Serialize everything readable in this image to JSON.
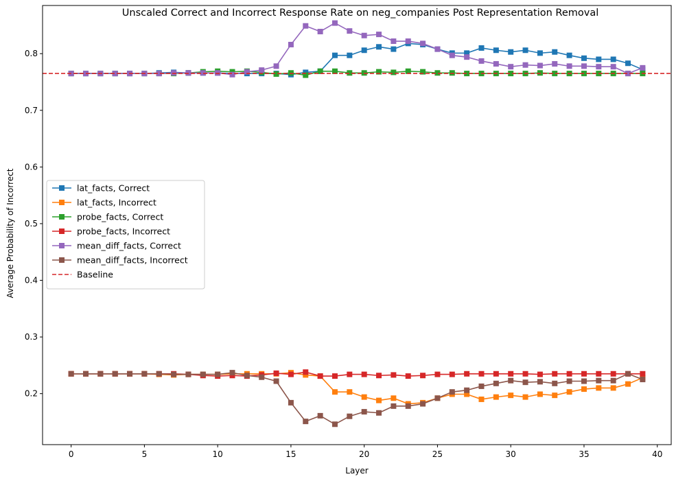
{
  "chart_data": {
    "type": "line",
    "title": "Unscaled Correct and Incorrect Response Rate on neg_companies Post Representation Removal",
    "xlabel": "Layer",
    "ylabel": "Average Probability of Incorrect",
    "xlim": [
      -1.95,
      40.95
    ],
    "ylim": [
      0.11,
      0.885
    ],
    "xticks": [
      0,
      5,
      10,
      15,
      20,
      25,
      30,
      35,
      40
    ],
    "yticks": [
      0.2,
      0.3,
      0.4,
      0.5,
      0.6,
      0.7,
      0.8
    ],
    "ytick_labels": [
      "0.2",
      "0.3",
      "0.4",
      "0.5",
      "0.6",
      "0.7",
      "0.8"
    ],
    "legend_position": "center-left",
    "grid": false,
    "x": [
      0,
      1,
      2,
      3,
      4,
      5,
      6,
      7,
      8,
      9,
      10,
      11,
      12,
      13,
      14,
      15,
      16,
      17,
      18,
      19,
      20,
      21,
      22,
      23,
      24,
      25,
      26,
      27,
      28,
      29,
      30,
      31,
      32,
      33,
      34,
      35,
      36,
      37,
      38,
      39
    ],
    "series": [
      {
        "name": "lat_facts, Correct",
        "color": "#1f77b4",
        "values": [
          0.765,
          0.765,
          0.765,
          0.765,
          0.765,
          0.765,
          0.766,
          0.767,
          0.766,
          0.766,
          0.766,
          0.765,
          0.765,
          0.765,
          0.765,
          0.763,
          0.767,
          0.769,
          0.797,
          0.797,
          0.806,
          0.812,
          0.808,
          0.818,
          0.816,
          0.808,
          0.801,
          0.801,
          0.81,
          0.806,
          0.803,
          0.806,
          0.801,
          0.803,
          0.797,
          0.792,
          0.79,
          0.79,
          0.783,
          0.772
        ]
      },
      {
        "name": "lat_facts, Incorrect",
        "color": "#ff7f0e",
        "values": [
          0.235,
          0.235,
          0.235,
          0.235,
          0.235,
          0.235,
          0.234,
          0.233,
          0.234,
          0.234,
          0.234,
          0.235,
          0.235,
          0.235,
          0.235,
          0.237,
          0.233,
          0.231,
          0.203,
          0.203,
          0.194,
          0.188,
          0.192,
          0.182,
          0.184,
          0.192,
          0.199,
          0.199,
          0.19,
          0.194,
          0.197,
          0.194,
          0.199,
          0.197,
          0.203,
          0.208,
          0.21,
          0.21,
          0.217,
          0.228
        ]
      },
      {
        "name": "probe_facts, Correct",
        "color": "#2ca02c",
        "values": [
          0.765,
          0.765,
          0.765,
          0.765,
          0.765,
          0.765,
          0.765,
          0.765,
          0.766,
          0.768,
          0.769,
          0.768,
          0.769,
          0.767,
          0.764,
          0.766,
          0.762,
          0.769,
          0.769,
          0.766,
          0.766,
          0.768,
          0.767,
          0.769,
          0.768,
          0.766,
          0.766,
          0.765,
          0.765,
          0.765,
          0.765,
          0.765,
          0.766,
          0.765,
          0.765,
          0.765,
          0.765,
          0.765,
          0.765,
          0.765
        ]
      },
      {
        "name": "probe_facts, Incorrect",
        "color": "#d62728",
        "values": [
          0.235,
          0.235,
          0.235,
          0.235,
          0.235,
          0.235,
          0.235,
          0.235,
          0.234,
          0.232,
          0.231,
          0.232,
          0.231,
          0.233,
          0.236,
          0.234,
          0.238,
          0.231,
          0.231,
          0.234,
          0.234,
          0.232,
          0.233,
          0.231,
          0.232,
          0.234,
          0.234,
          0.235,
          0.235,
          0.235,
          0.235,
          0.235,
          0.234,
          0.235,
          0.235,
          0.235,
          0.235,
          0.235,
          0.235,
          0.235
        ]
      },
      {
        "name": "mean_diff_facts, Correct",
        "color": "#9467bd",
        "values": [
          0.765,
          0.765,
          0.765,
          0.765,
          0.765,
          0.765,
          0.765,
          0.766,
          0.766,
          0.766,
          0.766,
          0.763,
          0.768,
          0.771,
          0.778,
          0.816,
          0.849,
          0.839,
          0.854,
          0.84,
          0.832,
          0.834,
          0.822,
          0.822,
          0.818,
          0.808,
          0.797,
          0.794,
          0.787,
          0.782,
          0.777,
          0.78,
          0.779,
          0.782,
          0.778,
          0.778,
          0.777,
          0.777,
          0.765,
          0.775
        ]
      },
      {
        "name": "mean_diff_facts, Incorrect",
        "color": "#8c564b",
        "values": [
          0.235,
          0.235,
          0.235,
          0.235,
          0.235,
          0.235,
          0.235,
          0.234,
          0.234,
          0.234,
          0.234,
          0.237,
          0.232,
          0.229,
          0.222,
          0.184,
          0.151,
          0.161,
          0.146,
          0.16,
          0.168,
          0.166,
          0.178,
          0.178,
          0.182,
          0.192,
          0.203,
          0.206,
          0.213,
          0.218,
          0.223,
          0.22,
          0.221,
          0.218,
          0.222,
          0.222,
          0.223,
          0.223,
          0.235,
          0.225
        ]
      }
    ],
    "baseline": {
      "name": "Baseline",
      "value": 0.765,
      "color": "#d62728",
      "style": "dashed"
    }
  }
}
